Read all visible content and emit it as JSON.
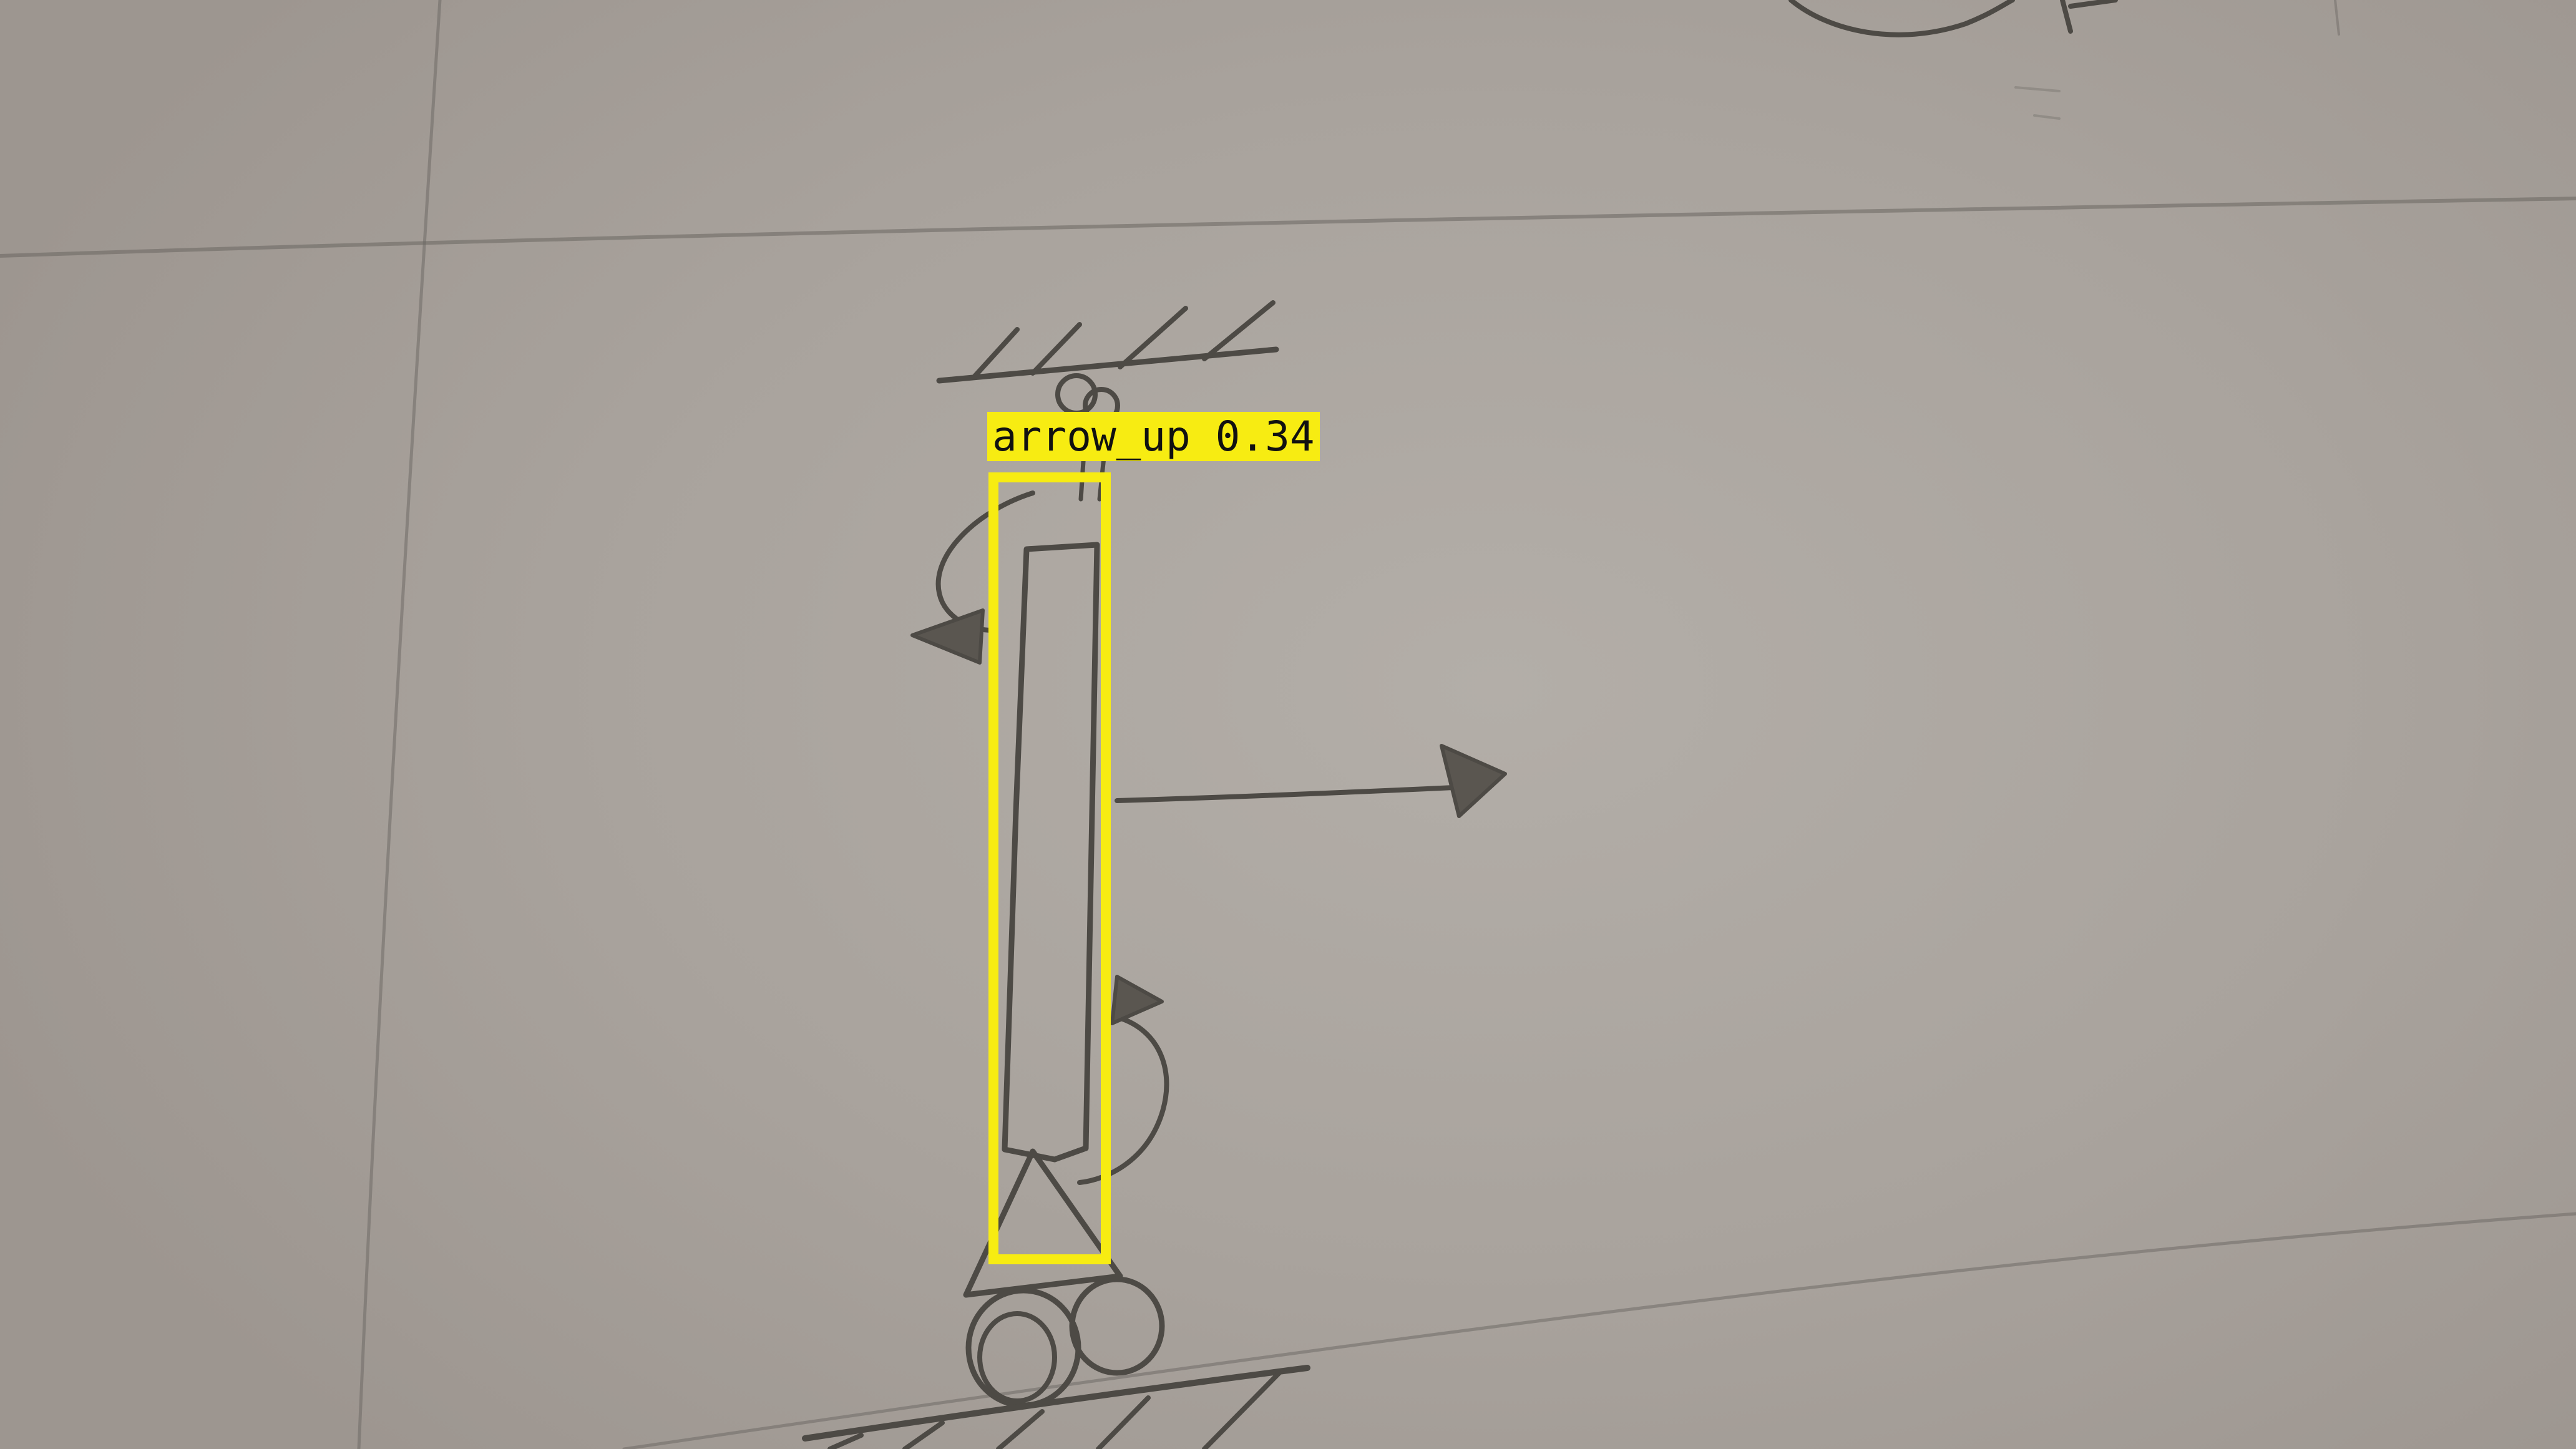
{
  "detections": [
    {
      "label": "arrow_up",
      "score": "0.34",
      "color": "#f7ec12"
    }
  ],
  "scene": {
    "paper_color": "#aaa49e",
    "ink_color": "#4d4a45"
  }
}
